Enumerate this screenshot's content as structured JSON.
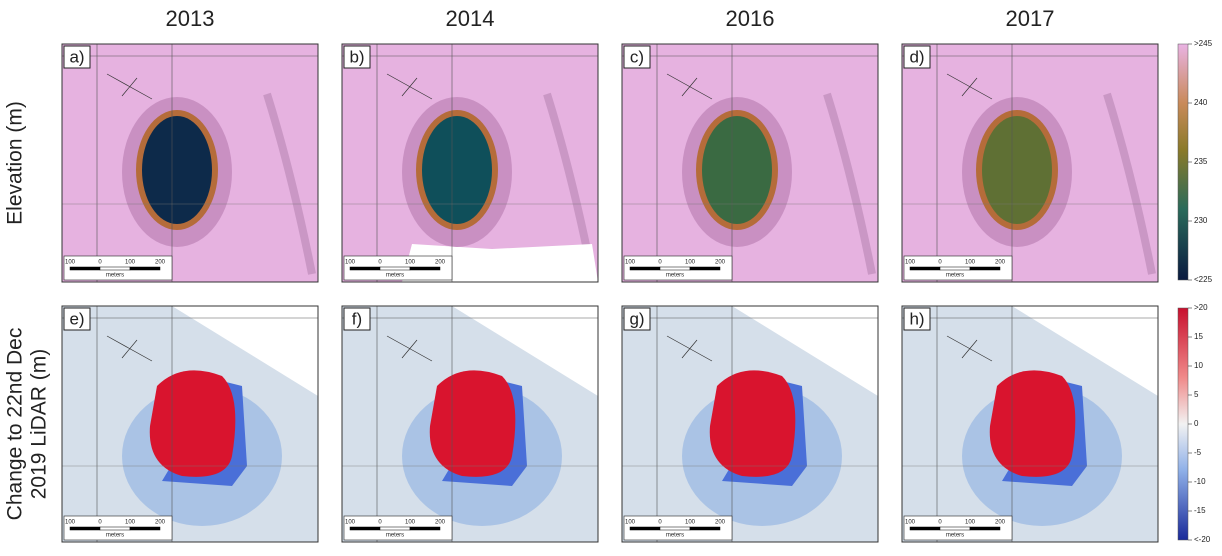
{
  "columns": [
    "2013",
    "2014",
    "2016",
    "2017"
  ],
  "rows": [
    {
      "label_lines": [
        "Elevation (m)"
      ],
      "panels": [
        "a)",
        "b)",
        "c)",
        "d)"
      ]
    },
    {
      "label_lines": [
        "Change to 22nd Dec",
        "2019 LiDAR (m)"
      ],
      "panels": [
        "e)",
        "f)",
        "g)",
        "h)"
      ]
    }
  ],
  "colorbars": [
    {
      "ticks": [
        ">245",
        "240",
        "235",
        "230",
        "<225"
      ]
    },
    {
      "ticks": [
        ">20",
        "15",
        "10",
        "5",
        "0",
        "-5",
        "-10",
        "-15",
        "<-20"
      ]
    }
  ],
  "scale_bar": {
    "labels": [
      "100",
      "0",
      "100",
      "200"
    ],
    "unit": "meters"
  }
}
